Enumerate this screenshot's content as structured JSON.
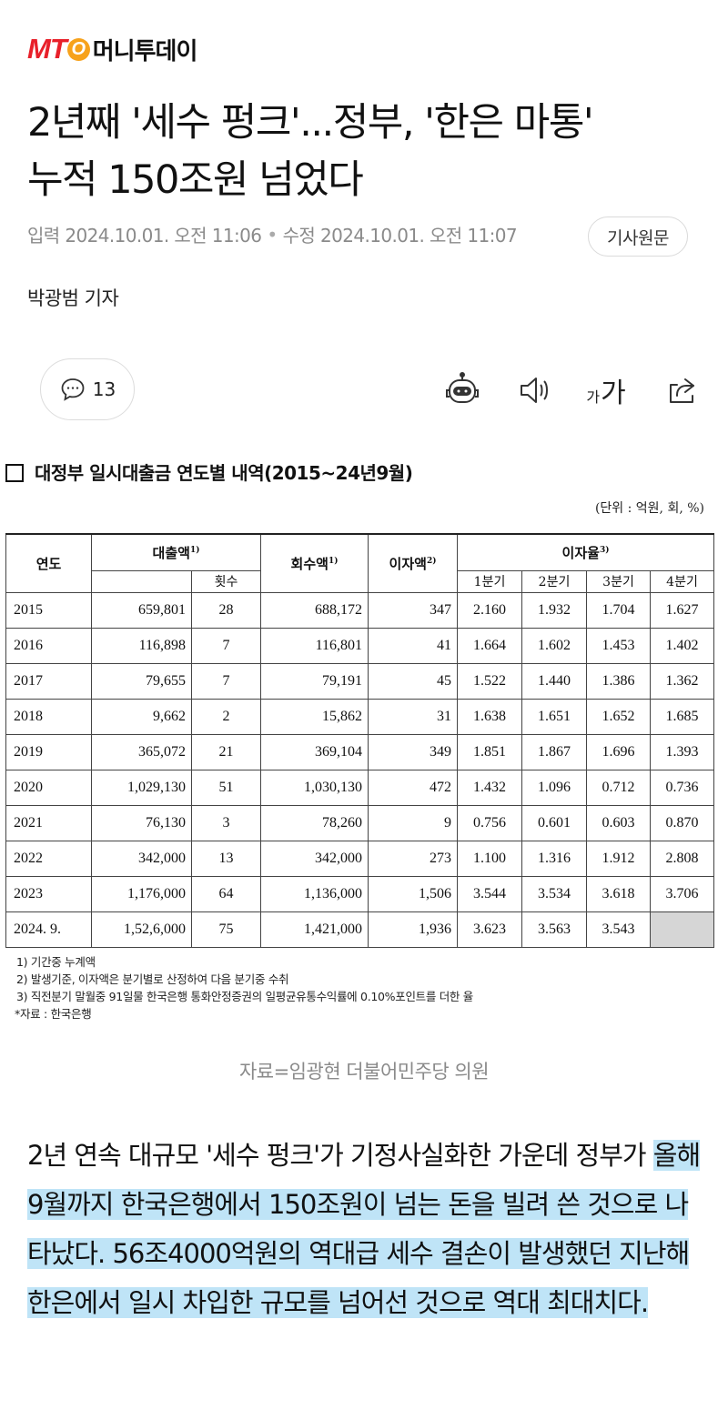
{
  "logo": {
    "mark": "MT",
    "mark_o": "O",
    "name": "머니투데이"
  },
  "headline": [
    "2년째 '세수 펑크'...정부, '한은 마통'",
    "누적 150조원 넘었다"
  ],
  "meta": {
    "published": "입력 2024.10.01. 오전 11:06",
    "separator": "•",
    "updated": "수정 2024.10.01. 오전 11:07",
    "original_button": "기사원문"
  },
  "reporter": "박광범 기자",
  "actions": {
    "comment_count": "13",
    "font_small": "가",
    "font_big": "가",
    "icons": [
      "comment-icon",
      "robot-summary-icon",
      "speaker-icon",
      "font-size-icon",
      "share-icon"
    ]
  },
  "table": {
    "title": "대정부 일시대출금 연도별 내역(2015~24년9월)",
    "unit": "(단위 : 억원, 회, %)",
    "headers": {
      "year": "연도",
      "loan": "대출액",
      "loan_sup": "1)",
      "count": "횟수",
      "repay": "회수액",
      "repay_sup": "1)",
      "interest": "이자액",
      "interest_sup": "2)",
      "rate": "이자율",
      "rate_sup": "3)",
      "quarters": [
        "1분기",
        "2분기",
        "3분기",
        "4분기"
      ]
    },
    "rows": [
      {
        "year": "2015",
        "loan": "659,801",
        "count": "28",
        "repay": "688,172",
        "interest": "347",
        "q": [
          "2.160",
          "1.932",
          "1.704",
          "1.627"
        ]
      },
      {
        "year": "2016",
        "loan": "116,898",
        "count": "7",
        "repay": "116,801",
        "interest": "41",
        "q": [
          "1.664",
          "1.602",
          "1.453",
          "1.402"
        ]
      },
      {
        "year": "2017",
        "loan": "79,655",
        "count": "7",
        "repay": "79,191",
        "interest": "45",
        "q": [
          "1.522",
          "1.440",
          "1.386",
          "1.362"
        ]
      },
      {
        "year": "2018",
        "loan": "9,662",
        "count": "2",
        "repay": "15,862",
        "interest": "31",
        "q": [
          "1.638",
          "1.651",
          "1.652",
          "1.685"
        ]
      },
      {
        "year": "2019",
        "loan": "365,072",
        "count": "21",
        "repay": "369,104",
        "interest": "349",
        "q": [
          "1.851",
          "1.867",
          "1.696",
          "1.393"
        ]
      },
      {
        "year": "2020",
        "loan": "1,029,130",
        "count": "51",
        "repay": "1,030,130",
        "interest": "472",
        "q": [
          "1.432",
          "1.096",
          "0.712",
          "0.736"
        ]
      },
      {
        "year": "2021",
        "loan": "76,130",
        "count": "3",
        "repay": "78,260",
        "interest": "9",
        "q": [
          "0.756",
          "0.601",
          "0.603",
          "0.870"
        ]
      },
      {
        "year": "2022",
        "loan": "342,000",
        "count": "13",
        "repay": "342,000",
        "interest": "273",
        "q": [
          "1.100",
          "1.316",
          "1.912",
          "2.808"
        ]
      },
      {
        "year": "2023",
        "loan": "1,176,000",
        "count": "64",
        "repay": "1,136,000",
        "interest": "1,506",
        "q": [
          "3.544",
          "3.534",
          "3.618",
          "3.706"
        ]
      },
      {
        "year": "2024. 9.",
        "loan": "1,52,6,000",
        "count": "75",
        "repay": "1,421,000",
        "interest": "1,936",
        "q": [
          "3.623",
          "3.563",
          "3.543",
          ""
        ]
      }
    ],
    "notes": [
      "1) 기간중 누계액",
      "2) 발생기준, 이자액은 분기별로 산정하여 다음 분기중 수취",
      "3) 직전분기 말월중 91일물 한국은행 통화안정증권의 일평균유통수익률에 0.10%포인트를 더한 율"
    ],
    "source": "*자료 : 한국은행"
  },
  "caption": "자료=임광현 더불어민주당 의원",
  "body": {
    "plain": "2년 연속 대규모 '세수 펑크'가 기정사실화한 가운데 정부가 ",
    "highlighted": "올해 9월까지 한국은행에서 150조원이 넘는 돈을 빌려 쓴 것으로 나타났다. 56조4000억원의 역대급 세수 결손이 발생했던 지난해 한은에서 일시 차입한 규모를 넘어선 것으로 역대 최대치다."
  }
}
